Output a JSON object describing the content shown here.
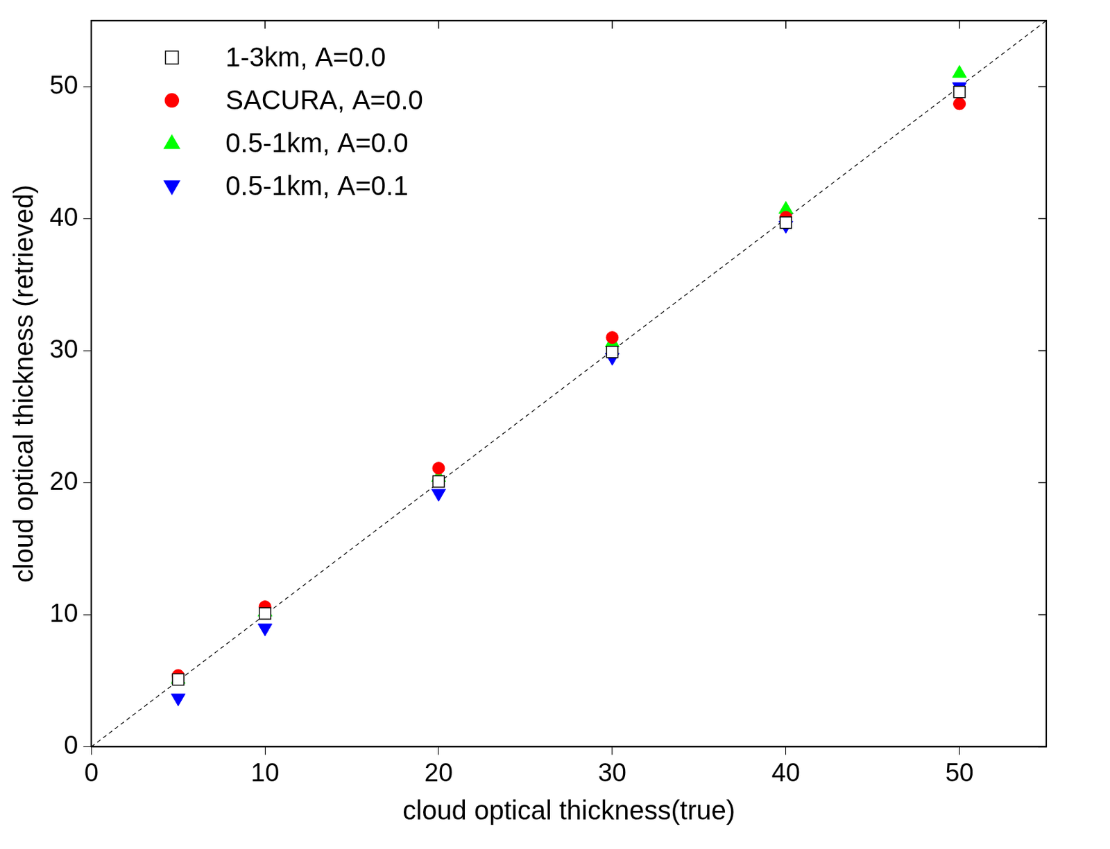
{
  "chart_data": {
    "type": "scatter",
    "x_label": "cloud optical thickness(true)",
    "y_label": "cloud optical thickness (retrieved)",
    "xlim": [
      0,
      55
    ],
    "ylim": [
      0,
      55
    ],
    "xticks": [
      0,
      10,
      20,
      30,
      40,
      50
    ],
    "yticks": [
      0,
      10,
      20,
      30,
      40,
      50
    ],
    "grid": false,
    "legend": "upper left",
    "x": [
      5,
      10,
      20,
      30,
      40,
      50
    ],
    "series": [
      {
        "name": "1-3km, A=0.0",
        "color": "#000000",
        "marker": "square",
        "values": [
          5.1,
          10.1,
          20.1,
          29.9,
          39.7,
          49.6
        ]
      },
      {
        "name": "SACURA, A=0.0",
        "color": "#ff0000",
        "marker": "circle",
        "values": [
          5.4,
          10.6,
          21.1,
          31.0,
          40.1,
          48.7
        ]
      },
      {
        "name": "0.5-1km, A=0.0",
        "color": "#00ff00",
        "marker": "triangle",
        "values": [
          5.1,
          10.2,
          20.4,
          30.6,
          40.7,
          51.0
        ]
      },
      {
        "name": "0.5-1km, A=0.1",
        "color": "#0000ff",
        "marker": "triangle-down",
        "values": [
          3.7,
          9.0,
          19.2,
          29.5,
          39.5,
          50.0
        ]
      }
    ]
  }
}
